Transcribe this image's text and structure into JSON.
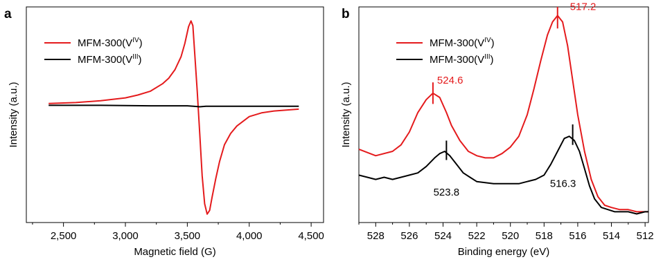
{
  "chart_data": [
    {
      "panel_label": "a",
      "type": "line",
      "xlabel": "Magnetic field (G)",
      "ylabel": "Intensity (a.u.)",
      "xlim": [
        2200,
        4600
      ],
      "ylim": [
        -1.25,
        1.05
      ],
      "xticks": [
        2500,
        3000,
        3500,
        4000,
        4500
      ],
      "xtick_labels": [
        "2,500",
        "3,000",
        "3,500",
        "4,000",
        "4,500"
      ],
      "grid": false,
      "legend_position": "top-left",
      "series": [
        {
          "name_base": "MFM-300(V",
          "name_sup": "IV",
          "name_close": ")",
          "color": "#e41a1c",
          "x": [
            2380,
            2600,
            2800,
            3000,
            3100,
            3200,
            3300,
            3350,
            3400,
            3450,
            3480,
            3510,
            3530,
            3545,
            3560,
            3580,
            3600,
            3620,
            3640,
            3660,
            3680,
            3700,
            3730,
            3760,
            3800,
            3850,
            3900,
            4000,
            4100,
            4200,
            4300,
            4400
          ],
          "y": [
            0.02,
            0.03,
            0.05,
            0.08,
            0.11,
            0.15,
            0.23,
            0.29,
            0.38,
            0.52,
            0.66,
            0.84,
            0.9,
            0.85,
            0.55,
            0.15,
            -0.3,
            -0.75,
            -1.05,
            -1.16,
            -1.12,
            -0.98,
            -0.78,
            -0.6,
            -0.42,
            -0.3,
            -0.22,
            -0.12,
            -0.08,
            -0.06,
            -0.05,
            -0.04
          ]
        },
        {
          "name_base": "MFM-300(V",
          "name_sup": "III",
          "name_close": ")",
          "color": "#000000",
          "x": [
            2380,
            2800,
            3200,
            3500,
            3550,
            3600,
            3650,
            4000,
            4400
          ],
          "y": [
            0.0,
            0.0,
            -0.005,
            -0.005,
            -0.01,
            -0.015,
            -0.01,
            -0.01,
            -0.01
          ]
        }
      ]
    },
    {
      "panel_label": "b",
      "type": "line",
      "xlabel": "Binding energy (eV)",
      "ylabel": "Intensity (a.u.)",
      "xlim": [
        529,
        511.8
      ],
      "x_reversed": true,
      "ylim": [
        0,
        1
      ],
      "xticks": [
        528,
        526,
        524,
        522,
        520,
        518,
        516,
        514,
        512
      ],
      "xtick_labels": [
        "528",
        "526",
        "524",
        "522",
        "520",
        "518",
        "516",
        "514",
        "512"
      ],
      "grid": false,
      "legend_position": "top-left",
      "series": [
        {
          "name_base": "MFM-300(V",
          "name_sup": "IV",
          "name_close": ")",
          "color": "#e41a1c",
          "x": [
            529,
            528,
            527,
            526.5,
            526,
            525.5,
            525,
            524.6,
            524.2,
            523.8,
            523.5,
            523,
            522.5,
            522,
            521.5,
            521,
            520.5,
            520,
            519.5,
            519,
            518.6,
            518.2,
            517.8,
            517.5,
            517.2,
            516.9,
            516.6,
            516.3,
            516,
            515.6,
            515.2,
            514.8,
            514.4,
            514,
            513.5,
            513,
            512.5,
            512,
            511.8
          ],
          "y": [
            0.34,
            0.31,
            0.33,
            0.36,
            0.42,
            0.51,
            0.57,
            0.6,
            0.58,
            0.51,
            0.45,
            0.38,
            0.33,
            0.31,
            0.3,
            0.3,
            0.32,
            0.35,
            0.4,
            0.5,
            0.62,
            0.75,
            0.87,
            0.93,
            0.96,
            0.93,
            0.82,
            0.66,
            0.5,
            0.33,
            0.2,
            0.12,
            0.08,
            0.07,
            0.06,
            0.06,
            0.05,
            0.05,
            0.05
          ]
        },
        {
          "name_base": "MFM-300(V",
          "name_sup": "III",
          "name_close": ")",
          "color": "#000000",
          "x": [
            529,
            528.5,
            528,
            527.5,
            527,
            526.5,
            526,
            525.5,
            525,
            524.5,
            524.2,
            523.9,
            523.6,
            523.2,
            522.8,
            522.4,
            522,
            521,
            520,
            519.5,
            519,
            518.5,
            518,
            517.6,
            517.2,
            516.8,
            516.5,
            516.2,
            515.9,
            515.6,
            515.3,
            515,
            514.6,
            514.2,
            513.8,
            513.4,
            513,
            512.5,
            512,
            511.8
          ],
          "y": [
            0.22,
            0.21,
            0.2,
            0.21,
            0.2,
            0.21,
            0.22,
            0.23,
            0.26,
            0.3,
            0.32,
            0.33,
            0.31,
            0.27,
            0.23,
            0.21,
            0.19,
            0.18,
            0.18,
            0.18,
            0.19,
            0.2,
            0.22,
            0.27,
            0.33,
            0.39,
            0.4,
            0.38,
            0.33,
            0.25,
            0.17,
            0.11,
            0.07,
            0.06,
            0.05,
            0.05,
            0.05,
            0.04,
            0.05,
            0.05
          ]
        }
      ],
      "annotations": [
        {
          "text": "524.6",
          "x": 524.6,
          "color": "#e41a1c",
          "marker_y_top": 0.65,
          "marker_y_bottom": 0.55,
          "label_dx": 6,
          "label_y": 0.645,
          "anchor": "start"
        },
        {
          "text": "517.2",
          "x": 517.2,
          "color": "#e41a1c",
          "marker_y_top": 1.0,
          "marker_y_bottom": 0.9,
          "label_dx": 18,
          "label_y": 0.985,
          "anchor": "start"
        },
        {
          "text": "523.8",
          "x": 523.8,
          "color": "#000000",
          "marker_y_top": 0.38,
          "marker_y_bottom": 0.29,
          "label_dx": 0,
          "label_y": 0.125,
          "anchor": "middle"
        },
        {
          "text": "516.3",
          "x": 516.3,
          "color": "#000000",
          "marker_y_top": 0.455,
          "marker_y_bottom": 0.36,
          "label_dx": -14,
          "label_y": 0.165,
          "anchor": "middle"
        }
      ]
    }
  ]
}
